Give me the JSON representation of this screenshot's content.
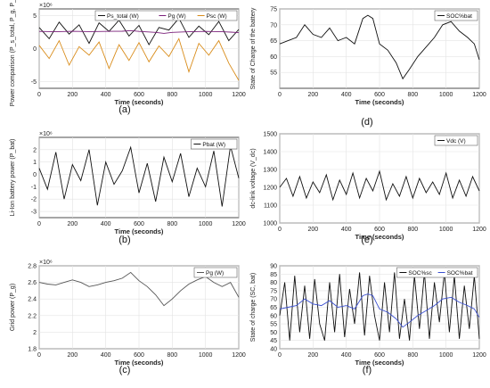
{
  "figure": {
    "captions": [
      "(a)",
      "(b)",
      "(c)",
      "(d)",
      "(e)",
      "(f)"
    ]
  },
  "chart_data": [
    {
      "panel": "a",
      "type": "line",
      "exponent_label": "×10⁶",
      "xlabel": "Time (seconds)",
      "ylabel": "Power comparison (P_s_total, P_g, P_sc)",
      "xlim": [
        0,
        1200
      ],
      "ylim": [
        -6,
        6
      ],
      "xticks": [
        0,
        200,
        400,
        600,
        800,
        1000,
        1200
      ],
      "yticks": [
        -5,
        0,
        5
      ],
      "grid": true,
      "legend": {
        "placement": "top-right",
        "entries": [
          "Ps_total (W)",
          "Pg (W)",
          "Psc (W)"
        ]
      },
      "series": [
        {
          "name": "Ps_total (W)",
          "color": "#111111",
          "x": [
            0,
            60,
            120,
            180,
            240,
            300,
            360,
            420,
            480,
            540,
            600,
            660,
            720,
            780,
            840,
            900,
            960,
            1020,
            1080,
            1140,
            1200
          ],
          "values": [
            3.2,
            1.5,
            4.0,
            2.2,
            3.6,
            0.8,
            3.9,
            2.6,
            4.3,
            1.9,
            3.5,
            0.6,
            3.2,
            2.8,
            4.6,
            1.7,
            3.4,
            2.1,
            4.1,
            1.2,
            2.9
          ]
        },
        {
          "name": "Pg (W)",
          "color": "#7a1f7a",
          "x": [
            0,
            100,
            200,
            300,
            400,
            500,
            550,
            600,
            700,
            750,
            800,
            900,
            1000,
            1100,
            1150,
            1200
          ],
          "values": [
            2.6,
            2.55,
            2.62,
            2.58,
            2.6,
            2.63,
            2.72,
            2.6,
            2.45,
            2.3,
            2.45,
            2.55,
            2.6,
            2.55,
            2.5,
            2.42
          ]
        },
        {
          "name": "Psc (W)",
          "color": "#d98c1a",
          "x": [
            0,
            60,
            120,
            180,
            240,
            300,
            360,
            420,
            480,
            540,
            600,
            660,
            720,
            780,
            840,
            900,
            960,
            1020,
            1080,
            1140,
            1200
          ],
          "values": [
            0.5,
            -1.5,
            1.2,
            -2.5,
            0.3,
            -1.0,
            1.0,
            -3.0,
            0.6,
            -1.8,
            0.9,
            -2.0,
            0.4,
            -1.2,
            1.5,
            -3.5,
            0.8,
            -1.0,
            1.2,
            -2.2,
            -4.8
          ]
        }
      ]
    },
    {
      "panel": "b",
      "type": "line",
      "exponent_label": "×10⁶",
      "xlabel": "Time (seconds)",
      "ylabel": "Li-Ion battery power (P_bat)",
      "xlim": [
        0,
        1200
      ],
      "ylim": [
        -3.5,
        3
      ],
      "xticks": [
        0,
        200,
        400,
        600,
        800,
        1000,
        1200
      ],
      "yticks": [
        -3,
        -2,
        -1,
        0,
        1,
        2
      ],
      "grid": true,
      "legend": {
        "placement": "top-right",
        "entries": [
          "Pbat (W)"
        ]
      },
      "series": [
        {
          "name": "Pbat (W)",
          "color": "#111111",
          "x": [
            0,
            50,
            100,
            150,
            200,
            250,
            300,
            350,
            400,
            450,
            500,
            550,
            600,
            650,
            700,
            750,
            800,
            850,
            900,
            950,
            1000,
            1050,
            1100,
            1150,
            1200
          ],
          "values": [
            0.5,
            -1.2,
            1.8,
            -2.0,
            0.8,
            -0.5,
            2.0,
            -2.5,
            1.0,
            -0.8,
            0.3,
            2.2,
            -1.5,
            0.9,
            -2.2,
            1.4,
            -0.6,
            1.7,
            -1.8,
            0.5,
            -1.0,
            1.9,
            -2.6,
            2.3,
            -0.3
          ]
        }
      ]
    },
    {
      "panel": "c",
      "type": "line",
      "exponent_label": "×10⁶",
      "xlabel": "Time (seconds)",
      "ylabel": "Grid power (P_g)",
      "xlim": [
        0,
        1200
      ],
      "ylim": [
        1.8,
        2.8
      ],
      "xticks": [
        0,
        200,
        400,
        600,
        800,
        1000,
        1200
      ],
      "yticks": [
        1.8,
        2,
        2.2,
        2.4,
        2.6,
        2.8
      ],
      "grid": true,
      "legend": {
        "placement": "top-right",
        "entries": [
          "Pg (W)"
        ]
      },
      "series": [
        {
          "name": "Pg (W)",
          "color": "#555555",
          "x": [
            0,
            50,
            100,
            150,
            200,
            250,
            300,
            350,
            400,
            450,
            500,
            550,
            600,
            650,
            700,
            750,
            800,
            850,
            900,
            950,
            1000,
            1050,
            1100,
            1150,
            1200
          ],
          "values": [
            2.6,
            2.58,
            2.57,
            2.6,
            2.63,
            2.6,
            2.55,
            2.57,
            2.6,
            2.62,
            2.65,
            2.72,
            2.62,
            2.55,
            2.45,
            2.32,
            2.4,
            2.5,
            2.58,
            2.63,
            2.67,
            2.6,
            2.55,
            2.6,
            2.42
          ]
        }
      ]
    },
    {
      "panel": "d",
      "type": "line",
      "xlabel": "Time (seconds)",
      "ylabel": "State of Charge of the battery",
      "xlim": [
        0,
        1200
      ],
      "ylim": [
        50,
        75
      ],
      "xticks": [
        0,
        200,
        400,
        600,
        800,
        1000,
        1200
      ],
      "yticks": [
        55,
        60,
        65,
        70,
        75
      ],
      "grid": true,
      "legend": {
        "placement": "top-right",
        "entries": [
          "SOC%bat"
        ]
      },
      "series": [
        {
          "name": "SOC%bat",
          "color": "#111111",
          "x": [
            0,
            50,
            100,
            150,
            200,
            250,
            300,
            350,
            400,
            450,
            500,
            530,
            560,
            600,
            650,
            700,
            740,
            780,
            830,
            880,
            930,
            980,
            1030,
            1080,
            1130,
            1170,
            1200
          ],
          "values": [
            64,
            65,
            66,
            70,
            67,
            66,
            69,
            65,
            66,
            64,
            72,
            73,
            72,
            64,
            62,
            58,
            53,
            56,
            60,
            63,
            66,
            70,
            71,
            68,
            66,
            64,
            59
          ]
        }
      ]
    },
    {
      "panel": "e",
      "type": "line",
      "xlabel": "Time (seconds)",
      "ylabel": "dc-link voltage (V_dc)",
      "xlim": [
        0,
        1200
      ],
      "ylim": [
        1000,
        1500
      ],
      "xticks": [
        0,
        200,
        400,
        600,
        800,
        1000,
        1200
      ],
      "yticks": [
        1000,
        1100,
        1200,
        1300,
        1400,
        1500
      ],
      "grid": true,
      "legend": {
        "placement": "top-right",
        "entries": [
          "Vdc (V)"
        ]
      },
      "series": [
        {
          "name": "Vdc (V)",
          "color": "#111111",
          "x": [
            0,
            40,
            80,
            120,
            160,
            200,
            240,
            280,
            320,
            360,
            400,
            440,
            480,
            520,
            560,
            600,
            640,
            680,
            720,
            760,
            800,
            840,
            880,
            920,
            960,
            1000,
            1040,
            1080,
            1120,
            1160,
            1200
          ],
          "values": [
            1200,
            1250,
            1150,
            1260,
            1140,
            1230,
            1170,
            1270,
            1130,
            1240,
            1160,
            1280,
            1140,
            1250,
            1180,
            1290,
            1130,
            1220,
            1150,
            1260,
            1140,
            1250,
            1170,
            1230,
            1160,
            1280,
            1140,
            1240,
            1150,
            1260,
            1180
          ]
        }
      ]
    },
    {
      "panel": "f",
      "type": "line",
      "xlabel": "Time (seconds)",
      "ylabel": "State of charge (SC, bat)",
      "xlim": [
        0,
        1200
      ],
      "ylim": [
        40,
        90
      ],
      "xticks": [
        0,
        200,
        400,
        600,
        800,
        1000,
        1200
      ],
      "yticks": [
        40,
        45,
        50,
        55,
        60,
        65,
        70,
        75,
        80,
        85,
        90
      ],
      "grid": true,
      "legend": {
        "placement": "top-right",
        "entries": [
          "SOC%sc",
          "SOC%bat"
        ]
      },
      "series": [
        {
          "name": "SOC%sc",
          "color": "#111111",
          "x": [
            0,
            30,
            60,
            90,
            120,
            150,
            180,
            210,
            240,
            270,
            300,
            330,
            360,
            390,
            420,
            450,
            480,
            510,
            540,
            570,
            600,
            630,
            660,
            690,
            720,
            750,
            780,
            810,
            840,
            870,
            900,
            930,
            960,
            990,
            1020,
            1050,
            1080,
            1110,
            1140,
            1170,
            1200
          ],
          "values": [
            60,
            80,
            45,
            84,
            50,
            78,
            46,
            82,
            55,
            45,
            80,
            50,
            85,
            47,
            76,
            55,
            86,
            48,
            84,
            60,
            45,
            80,
            50,
            86,
            46,
            70,
            45,
            84,
            52,
            86,
            46,
            80,
            56,
            86,
            50,
            84,
            46,
            78,
            52,
            84,
            46
          ]
        },
        {
          "name": "SOC%bat",
          "color": "#3a4fd0",
          "x": [
            0,
            50,
            100,
            150,
            200,
            250,
            300,
            350,
            400,
            450,
            500,
            530,
            560,
            600,
            650,
            700,
            740,
            780,
            830,
            880,
            930,
            980,
            1030,
            1080,
            1130,
            1170,
            1200
          ],
          "values": [
            64,
            65,
            66,
            70,
            67,
            66,
            69,
            65,
            66,
            64,
            72,
            73,
            72,
            64,
            62,
            58,
            53,
            56,
            60,
            63,
            66,
            70,
            71,
            68,
            66,
            64,
            59
          ]
        }
      ]
    }
  ]
}
